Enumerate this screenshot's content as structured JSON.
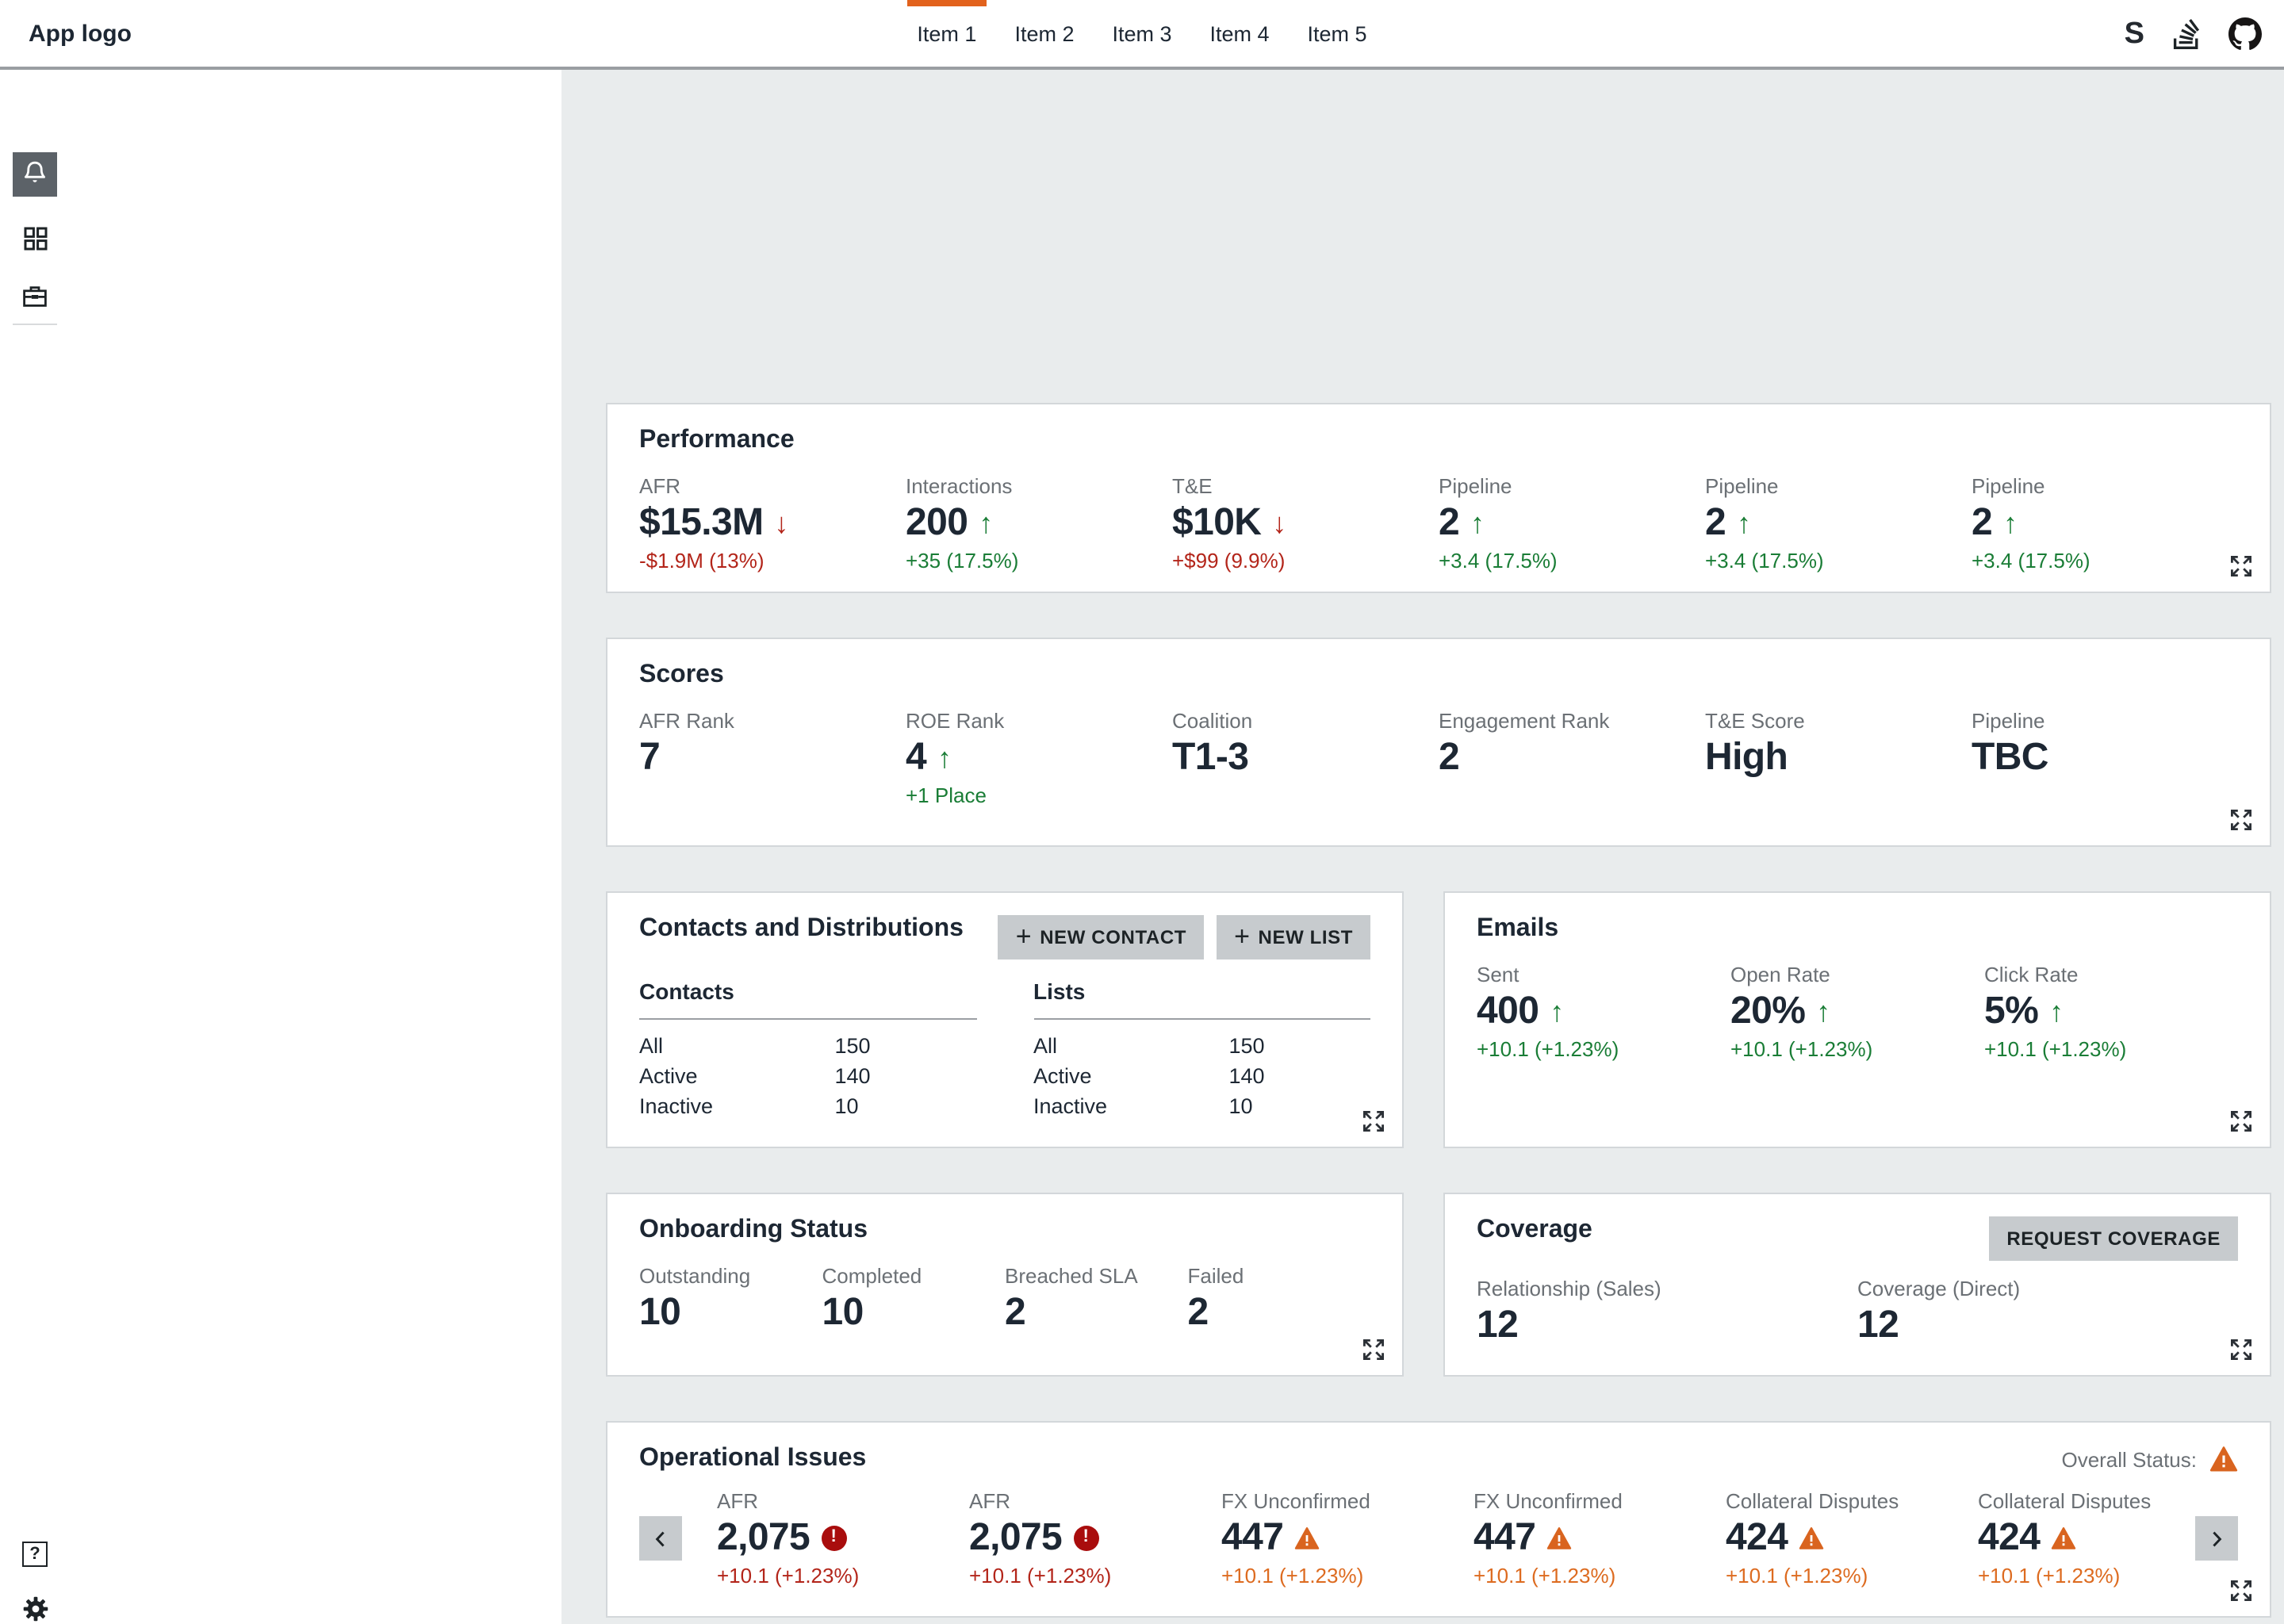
{
  "nav": {
    "logo": "App logo",
    "items": [
      {
        "label": "Item 1",
        "active": true
      },
      {
        "label": "Item 2",
        "active": false
      },
      {
        "label": "Item 3",
        "active": false
      },
      {
        "label": "Item 4",
        "active": false
      },
      {
        "label": "Item 5",
        "active": false
      }
    ],
    "right_icons": [
      "s-logo",
      "stackoverflow",
      "github"
    ]
  },
  "sidebar": {
    "top_icons": [
      "notifications-bell",
      "apps-grid",
      "work-briefcase"
    ],
    "bottom_icons": [
      "help-question",
      "settings-gear",
      "user-avatar"
    ],
    "active_icon": "notifications-bell"
  },
  "icons": {
    "s": "S",
    "plus": "+",
    "question": "?",
    "up": "↑",
    "down": "↓",
    "exclaim": "!"
  },
  "colors": {
    "accent": "#e2621c",
    "green": "#1a7d36",
    "red": "#b3251a",
    "orange": "#dd6b20",
    "error": "#a90d0d",
    "warn": "#d9641f",
    "value": "#1d2733",
    "label": "#6b7075",
    "bg": "#e9eced",
    "card_border": "#d3d7da",
    "header_border": "#9a9ea2",
    "btn_bg": "#c7cbce",
    "bell_bg": "#5c6268"
  },
  "cards": {
    "performance": {
      "title": "Performance",
      "metrics": [
        {
          "label": "AFR",
          "value": "$15.3M",
          "trend": "down",
          "change": "-$1.9M (13%)",
          "change_color": "red"
        },
        {
          "label": "Interactions",
          "value": "200",
          "trend": "up",
          "change": "+35 (17.5%)",
          "change_color": "green"
        },
        {
          "label": "T&E",
          "value": "$10K",
          "trend": "down",
          "change": "+$99 (9.9%)",
          "change_color": "red"
        },
        {
          "label": "Pipeline",
          "value": "2",
          "trend": "up",
          "change": "+3.4 (17.5%)",
          "change_color": "green"
        },
        {
          "label": "Pipeline",
          "value": "2",
          "trend": "up",
          "change": "+3.4 (17.5%)",
          "change_color": "green"
        },
        {
          "label": "Pipeline",
          "value": "2",
          "trend": "up",
          "change": "+3.4 (17.5%)",
          "change_color": "green"
        }
      ]
    },
    "scores": {
      "title": "Scores",
      "metrics": [
        {
          "label": "AFR Rank",
          "value": "7"
        },
        {
          "label": "ROE Rank",
          "value": "4",
          "trend": "up",
          "change": "+1 Place",
          "change_color": "green"
        },
        {
          "label": "Coalition",
          "value": "T1-3"
        },
        {
          "label": "Engagement Rank",
          "value": "2"
        },
        {
          "label": "T&E Score",
          "value": "High"
        },
        {
          "label": "Pipeline",
          "value": "TBC"
        }
      ]
    },
    "contacts": {
      "title": "Contacts and Distributions",
      "buttons": [
        {
          "label": "NEW CONTACT"
        },
        {
          "label": "NEW LIST"
        }
      ],
      "tables": [
        {
          "heading": "Contacts",
          "rows": [
            [
              "All",
              "150"
            ],
            [
              "Active",
              "140"
            ],
            [
              "Inactive",
              "10"
            ]
          ]
        },
        {
          "heading": "Lists",
          "rows": [
            [
              "All",
              "150"
            ],
            [
              "Active",
              "140"
            ],
            [
              "Inactive",
              "10"
            ]
          ]
        }
      ]
    },
    "emails": {
      "title": "Emails",
      "metrics": [
        {
          "label": "Sent",
          "value": "400",
          "trend": "up",
          "change": "+10.1 (+1.23%)",
          "change_color": "green"
        },
        {
          "label": "Open Rate",
          "value": "20%",
          "trend": "up",
          "change": "+10.1 (+1.23%)",
          "change_color": "green"
        },
        {
          "label": "Click Rate",
          "value": "5%",
          "trend": "up",
          "change": "+10.1 (+1.23%)",
          "change_color": "green"
        }
      ]
    },
    "onboarding": {
      "title": "Onboarding Status",
      "metrics": [
        {
          "label": "Outstanding",
          "value": "10"
        },
        {
          "label": "Completed",
          "value": "10"
        },
        {
          "label": "Breached SLA",
          "value": "2"
        },
        {
          "label": "Failed",
          "value": "2"
        }
      ]
    },
    "coverage": {
      "title": "Coverage",
      "button": "REQUEST COVERAGE",
      "metrics": [
        {
          "label": "Relationship (Sales)",
          "value": "12"
        },
        {
          "label": "Coverage (Direct)",
          "value": "12"
        }
      ]
    },
    "operational": {
      "title": "Operational Issues",
      "overall_status_label": "Overall Status:",
      "metrics": [
        {
          "label": "AFR",
          "value": "2,075",
          "icon": "error",
          "change": "+10.1 (+1.23%)",
          "change_color": "red"
        },
        {
          "label": "AFR",
          "value": "2,075",
          "icon": "error",
          "change": "+10.1 (+1.23%)",
          "change_color": "red"
        },
        {
          "label": "FX Unconfirmed",
          "value": "447",
          "icon": "warning",
          "change": "+10.1 (+1.23%)",
          "change_color": "orange"
        },
        {
          "label": "FX Unconfirmed",
          "value": "447",
          "icon": "warning",
          "change": "+10.1 (+1.23%)",
          "change_color": "orange"
        },
        {
          "label": "Collateral Disputes",
          "value": "424",
          "icon": "warning",
          "change": "+10.1 (+1.23%)",
          "change_color": "orange"
        },
        {
          "label": "Collateral Disputes",
          "value": "424",
          "icon": "warning",
          "change": "+10.1 (+1.23%)",
          "change_color": "orange"
        }
      ]
    }
  }
}
